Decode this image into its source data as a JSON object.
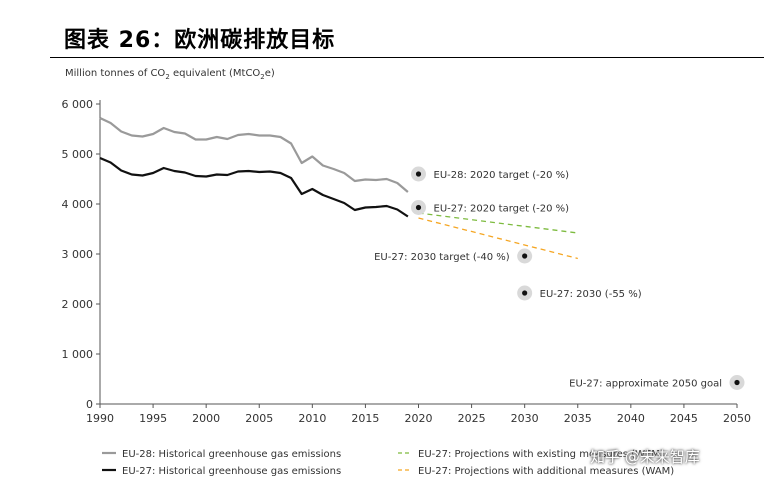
{
  "page_title": "图表 26：欧洲碳排放目标",
  "watermark": "知乎 @未来智库",
  "chart_data": {
    "type": "line",
    "ylabel": "Million tonnes of CO2 equivalent (MtCO2e)",
    "ylabel_parts": [
      "Million tonnes of CO",
      "2",
      " equivalent (MtCO",
      "2",
      "e)"
    ],
    "xlim": [
      1990,
      2050
    ],
    "ylim": [
      0,
      6000
    ],
    "x_ticks": [
      1990,
      1995,
      2000,
      2005,
      2010,
      2015,
      2020,
      2025,
      2030,
      2035,
      2040,
      2045,
      2050
    ],
    "y_ticks": [
      0,
      1000,
      2000,
      3000,
      4000,
      5000,
      6000
    ],
    "y_tick_labels": [
      "0",
      "1 000",
      "2 000",
      "3 000",
      "4 000",
      "5 000",
      "6 000"
    ],
    "series": [
      {
        "name": "EU-28: Historical greenhouse gas emissions",
        "color": "#9a9a9a",
        "style": "solid",
        "x": [
          1990,
          1991,
          1992,
          1993,
          1994,
          1995,
          1996,
          1997,
          1998,
          1999,
          2000,
          2001,
          2002,
          2003,
          2004,
          2005,
          2006,
          2007,
          2008,
          2009,
          2010,
          2011,
          2012,
          2013,
          2014,
          2015,
          2016,
          2017,
          2018,
          2019
        ],
        "y": [
          5720,
          5620,
          5450,
          5370,
          5350,
          5400,
          5520,
          5440,
          5410,
          5290,
          5290,
          5340,
          5300,
          5380,
          5400,
          5370,
          5370,
          5340,
          5210,
          4820,
          4950,
          4770,
          4700,
          4620,
          4460,
          4490,
          4480,
          4500,
          4420,
          4240
        ]
      },
      {
        "name": "EU-27: Historical greenhouse gas emissions",
        "color": "#111111",
        "style": "solid",
        "x": [
          1990,
          1991,
          1992,
          1993,
          1994,
          1995,
          1996,
          1997,
          1998,
          1999,
          2000,
          2001,
          2002,
          2003,
          2004,
          2005,
          2006,
          2007,
          2008,
          2009,
          2010,
          2011,
          2012,
          2013,
          2014,
          2015,
          2016,
          2017,
          2018,
          2019
        ],
        "y": [
          4920,
          4830,
          4670,
          4590,
          4570,
          4620,
          4720,
          4660,
          4630,
          4560,
          4550,
          4590,
          4580,
          4650,
          4660,
          4640,
          4650,
          4620,
          4520,
          4200,
          4300,
          4180,
          4100,
          4020,
          3880,
          3930,
          3940,
          3960,
          3890,
          3750
        ]
      },
      {
        "name": "EU-27: Projections with existing measures (WEM)",
        "color": "#7dbb3f",
        "style": "dashed",
        "x": [
          2020,
          2035
        ],
        "y": [
          3820,
          3420
        ]
      },
      {
        "name": "EU-27: Projections with additional measures (WAM)",
        "color": "#f5a623",
        "style": "dashed",
        "x": [
          2020,
          2035
        ],
        "y": [
          3720,
          2910
        ]
      }
    ],
    "targets": [
      {
        "x": 2020,
        "y": 4600,
        "label": "EU-28: 2020 target (-20 %)",
        "anchor": "right"
      },
      {
        "x": 2020,
        "y": 3930,
        "label": "EU-27: 2020 target (-20 %)",
        "anchor": "right"
      },
      {
        "x": 2030,
        "y": 2960,
        "label": "EU-27: 2030 target (-40 %)",
        "anchor": "left"
      },
      {
        "x": 2030,
        "y": 2220,
        "label": "EU-27: 2030 (-55 %)",
        "anchor": "right"
      },
      {
        "x": 2050,
        "y": 430,
        "label": "EU-27: approximate 2050 goal",
        "anchor": "left"
      }
    ],
    "legend_position": "bottom"
  }
}
